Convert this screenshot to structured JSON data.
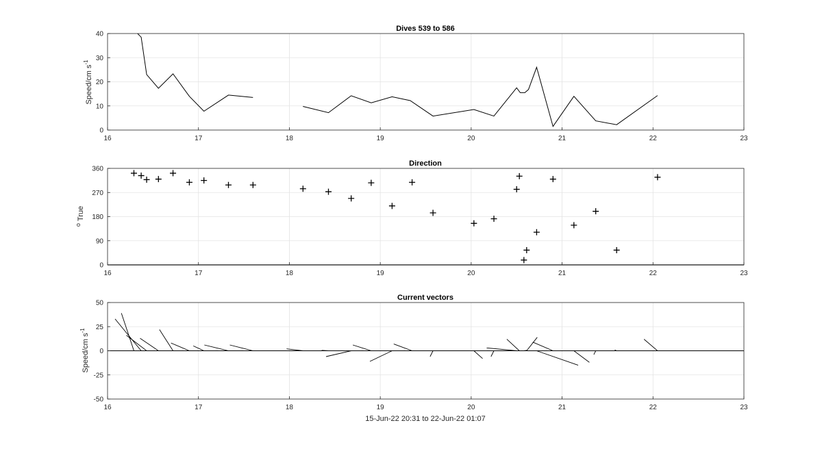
{
  "chart_data": [
    {
      "type": "line",
      "title": "Dives 539 to 586",
      "ylabel": "Speed/cm s",
      "ylabel_exponent": "-1",
      "xlim": [
        16,
        23
      ],
      "ylim": [
        0,
        40
      ],
      "xticks": [
        16,
        17,
        18,
        19,
        20,
        21,
        22,
        23
      ],
      "yticks": [
        0,
        10,
        20,
        30,
        40
      ],
      "grid": true,
      "series": [
        {
          "color": "#000000",
          "segments": [
            [
              [
                16.33,
                40
              ],
              [
                16.37,
                38.5
              ],
              [
                16.43,
                23.0
              ],
              [
                16.56,
                17.3
              ],
              [
                16.72,
                23.3
              ],
              [
                16.9,
                14.0
              ],
              [
                17.06,
                7.8
              ],
              [
                17.33,
                14.5
              ],
              [
                17.6,
                13.5
              ]
            ],
            [
              [
                18.15,
                9.8
              ],
              [
                18.43,
                7.2
              ],
              [
                18.68,
                14.2
              ],
              [
                18.9,
                11.3
              ],
              [
                19.13,
                13.8
              ],
              [
                19.33,
                12.2
              ],
              [
                19.58,
                5.8
              ],
              [
                20.03,
                8.5
              ],
              [
                20.25,
                5.8
              ],
              [
                20.5,
                17.5
              ],
              [
                20.54,
                15.5
              ],
              [
                20.59,
                15.5
              ],
              [
                20.63,
                16.8
              ],
              [
                20.72,
                26.0
              ],
              [
                20.9,
                1.5
              ],
              [
                21.13,
                14.0
              ],
              [
                21.37,
                3.8
              ],
              [
                21.6,
                2.2
              ],
              [
                22.05,
                14.3
              ]
            ]
          ]
        }
      ]
    },
    {
      "type": "scatter",
      "title": "Direction",
      "ylabel": "True",
      "ylabel_prefix": "o",
      "xlim": [
        16,
        23
      ],
      "ylim": [
        0,
        360
      ],
      "xticks": [
        16,
        17,
        18,
        19,
        20,
        21,
        22,
        23
      ],
      "yticks": [
        0,
        90,
        180,
        270,
        360
      ],
      "grid": true,
      "marker": "+",
      "x": [
        16.29,
        16.37,
        16.43,
        16.56,
        16.72,
        16.9,
        17.06,
        17.33,
        17.6,
        18.15,
        18.43,
        18.68,
        18.9,
        19.13,
        19.35,
        19.58,
        20.03,
        20.25,
        20.5,
        20.53,
        20.58,
        20.61,
        20.72,
        20.9,
        21.13,
        21.37,
        21.6,
        22.05
      ],
      "y": [
        342,
        333,
        318,
        320,
        342,
        308,
        315,
        298,
        298,
        284,
        273,
        248,
        306,
        220,
        308,
        194,
        155,
        172,
        282,
        331,
        18,
        55,
        122,
        320,
        148,
        200,
        55,
        327
      ]
    },
    {
      "type": "line",
      "title": "Current vectors",
      "ylabel": "Speed/cm s",
      "ylabel_exponent": "-1",
      "xlabel": "15-Jun-22 20:31 to 22-Jun-22 01:07",
      "xlim": [
        16,
        23
      ],
      "ylim": [
        -50,
        50
      ],
      "xticks": [
        16,
        17,
        18,
        19,
        20,
        21,
        22,
        23
      ],
      "yticks": [
        -50,
        -25,
        0,
        25,
        50
      ],
      "grid": true,
      "zero_line": true,
      "vectors": [
        {
          "x": 16.29,
          "u": -13,
          "v": 39
        },
        {
          "x": 16.37,
          "u": -27,
          "v": 33
        },
        {
          "x": 16.43,
          "u": -21,
          "v": 16
        },
        {
          "x": 16.56,
          "u": -19,
          "v": 13
        },
        {
          "x": 16.72,
          "u": -14,
          "v": 22
        },
        {
          "x": 16.9,
          "u": -19,
          "v": 8
        },
        {
          "x": 17.06,
          "u": -11,
          "v": 5
        },
        {
          "x": 17.33,
          "u": -25,
          "v": 6
        },
        {
          "x": 17.6,
          "u": -24,
          "v": 6
        },
        {
          "x": 18.15,
          "u": -17,
          "v": 2
        },
        {
          "x": 18.43,
          "u": -7,
          "v": 0.5
        },
        {
          "x": 18.68,
          "u": -26,
          "v": -6
        },
        {
          "x": 18.9,
          "u": -19,
          "v": 6
        },
        {
          "x": 19.13,
          "u": -23,
          "v": -11
        },
        {
          "x": 19.35,
          "u": -19,
          "v": 7
        },
        {
          "x": 19.58,
          "u": -3,
          "v": -6
        },
        {
          "x": 20.03,
          "u": 9,
          "v": -8
        },
        {
          "x": 20.25,
          "u": -3,
          "v": -6
        },
        {
          "x": 20.5,
          "u": -31,
          "v": 3
        },
        {
          "x": 20.53,
          "u": -13,
          "v": 12
        },
        {
          "x": 20.58,
          "u": 3,
          "v": 0.5
        },
        {
          "x": 20.61,
          "u": 11,
          "v": 14
        },
        {
          "x": 20.72,
          "u": 43,
          "v": -15
        },
        {
          "x": 20.9,
          "u": -21,
          "v": 9
        },
        {
          "x": 21.13,
          "u": 16,
          "v": -12
        },
        {
          "x": 21.37,
          "u": -2,
          "v": -4
        },
        {
          "x": 21.6,
          "u": -2,
          "v": 1
        },
        {
          "x": 22.05,
          "u": -14,
          "v": 12
        }
      ]
    }
  ]
}
